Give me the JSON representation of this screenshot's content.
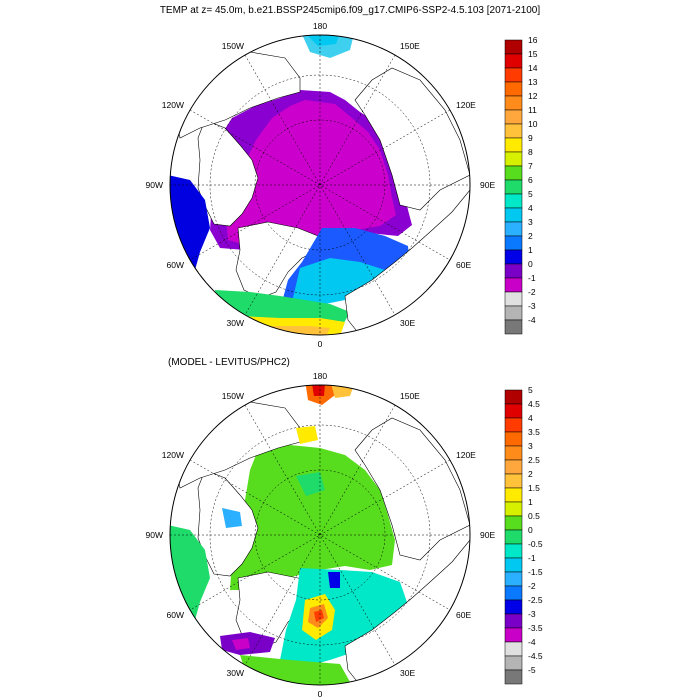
{
  "title": "TEMP at z=  45.0m, b.e21.BSSP245cmip6.f09_g17.CMIP6-SSP2-4.5.103 [2071-2100]",
  "subtitle": "(MODEL - LEVITUS/PHC2)",
  "map_labels": [
    "180",
    "150E",
    "120E",
    "90E",
    "60E",
    "30E",
    "0",
    "30W",
    "60W",
    "90W",
    "120W",
    "150W"
  ],
  "colorbar_top": {
    "labels": [
      "16",
      "15",
      "14",
      "13",
      "12",
      "11",
      "10",
      "9",
      "8",
      "7",
      "6",
      "5",
      "4",
      "3",
      "2",
      "1",
      "0",
      "-1",
      "-2",
      "-3",
      "-4"
    ],
    "colors": [
      "#b00000",
      "#e00000",
      "#ff3b00",
      "#ff6a00",
      "#ff8c1a",
      "#ffa73d",
      "#ffc23a",
      "#ffea00",
      "#d6f000",
      "#57dd1e",
      "#1fdb6a",
      "#00e8c8",
      "#00c8f0",
      "#2ab0ff",
      "#0a78ff",
      "#0000e8",
      "#7a00c8",
      "#c800c8",
      "#e0e0e0",
      "#b4b4b4",
      "#787878"
    ]
  },
  "colorbar_bottom": {
    "labels": [
      "5",
      "4.5",
      "4",
      "3.5",
      "3",
      "2.5",
      "2",
      "1.5",
      "1",
      "0.5",
      "0",
      "-0.5",
      "-1",
      "-1.5",
      "-2",
      "-2.5",
      "-3",
      "-3.5",
      "-4",
      "-4.5",
      "-5"
    ],
    "colors": [
      "#b00000",
      "#e00000",
      "#ff3b00",
      "#ff6a00",
      "#ff8c1a",
      "#ffa73d",
      "#ffc23a",
      "#ffea00",
      "#d6f000",
      "#57dd1e",
      "#1fdb6a",
      "#00e8c8",
      "#00c8f0",
      "#2ab0ff",
      "#0a78ff",
      "#0000e8",
      "#7a00c8",
      "#c800c8",
      "#e0e0e0",
      "#b4b4b4",
      "#787878"
    ]
  }
}
